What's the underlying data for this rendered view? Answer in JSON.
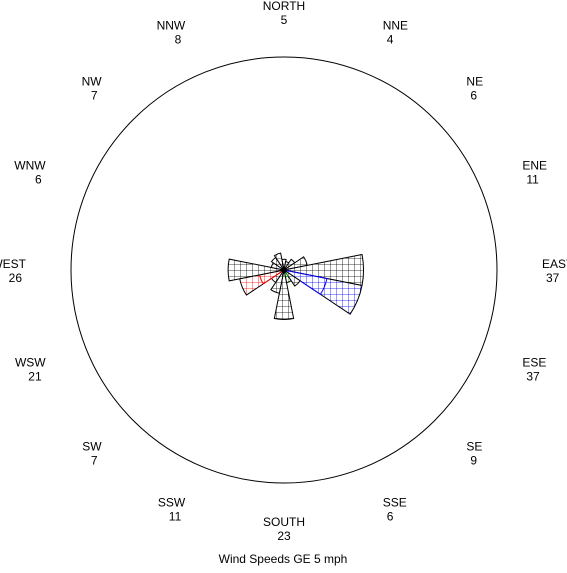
{
  "chart_data": {
    "type": "wind-rose",
    "footnote": "Wind Speeds GE 5 mph",
    "grid": false,
    "directions": [
      {
        "name": "NORTH",
        "count": 5
      },
      {
        "name": "NNE",
        "count": 4
      },
      {
        "name": "NE",
        "count": 6
      },
      {
        "name": "ENE",
        "count": 11
      },
      {
        "name": "EAST",
        "count": 37
      },
      {
        "name": "ESE",
        "count": 37
      },
      {
        "name": "SE",
        "count": 9
      },
      {
        "name": "SSE",
        "count": 6
      },
      {
        "name": "SOUTH",
        "count": 23
      },
      {
        "name": "SSW",
        "count": 11
      },
      {
        "name": "SW",
        "count": 7
      },
      {
        "name": "WSW",
        "count": 21
      },
      {
        "name": "WEST",
        "count": 26
      },
      {
        "name": "WNW",
        "count": 6
      },
      {
        "name": "NW",
        "count": 7
      },
      {
        "name": "NNW",
        "count": 8
      }
    ],
    "colors": {
      "outline": "#000000",
      "band_black": "#000000",
      "band_blue": "#0000ff",
      "band_red": "#ff0000",
      "band_green": "#00a000"
    }
  }
}
